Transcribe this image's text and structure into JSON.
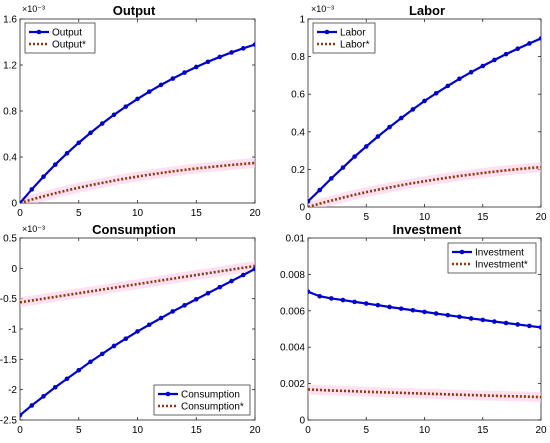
{
  "chart_data": [
    {
      "type": "line",
      "title": "Output",
      "exponent_label": "×10⁻³",
      "xlim": [
        0,
        20
      ],
      "ylim": [
        0,
        0.0016
      ],
      "xticks": [
        0,
        5,
        10,
        15,
        20
      ],
      "xtick_labels": [
        "0",
        "5",
        "10",
        "15",
        "20"
      ],
      "yticks": [
        0,
        0.0004,
        0.0008,
        0.0012,
        0.0016
      ],
      "ytick_labels": [
        "0",
        "0.4",
        "0.8",
        "1.2",
        "1.6"
      ],
      "legend_position": "top-left",
      "colors": {
        "primary": "#0000cc",
        "star": "#8b3a0f",
        "band": "#ffc8e6"
      },
      "x": [
        0,
        1,
        2,
        3,
        4,
        5,
        6,
        7,
        8,
        9,
        10,
        11,
        12,
        13,
        14,
        15,
        16,
        17,
        18,
        19,
        20
      ],
      "series": [
        {
          "name": "Output",
          "style": "solid-marker",
          "values": [
            0.0,
            0.000118,
            0.000229,
            0.000334,
            0.000432,
            0.000524,
            0.00061,
            0.000691,
            0.000767,
            0.000838,
            0.000905,
            0.000968,
            0.001027,
            0.001082,
            0.001134,
            0.001183,
            0.001228,
            0.00127,
            0.001309,
            0.001345,
            0.001378
          ]
        },
        {
          "name": "Output*",
          "style": "dotted",
          "values": [
            0.0,
            3e-05,
            5.8e-05,
            8.5e-05,
            0.00011,
            0.000133,
            0.000155,
            0.000175,
            0.000195,
            0.000213,
            0.00023,
            0.000246,
            0.000261,
            0.000275,
            0.000288,
            0.0003,
            0.000311,
            0.000321,
            0.000331,
            0.00034,
            0.000348
          ]
        }
      ]
    },
    {
      "type": "line",
      "title": "Labor",
      "exponent_label": "×10⁻³",
      "xlim": [
        0,
        20
      ],
      "ylim": [
        0,
        0.001
      ],
      "xticks": [
        0,
        5,
        10,
        15,
        20
      ],
      "xtick_labels": [
        "0",
        "5",
        "10",
        "15",
        "20"
      ],
      "yticks": [
        0,
        0.0002,
        0.0004,
        0.0006,
        0.0008,
        0.001
      ],
      "ytick_labels": [
        "0",
        "0.2",
        "0.4",
        "0.6",
        "0.8",
        "1"
      ],
      "legend_position": "top-left",
      "colors": {
        "primary": "#0000cc",
        "star": "#8b3a0f",
        "band": "#ffc8e6"
      },
      "x": [
        0,
        1,
        2,
        3,
        4,
        5,
        6,
        7,
        8,
        9,
        10,
        11,
        12,
        13,
        14,
        15,
        16,
        17,
        18,
        19,
        20
      ],
      "series": [
        {
          "name": "Labor",
          "style": "solid-marker",
          "values": [
            3e-05,
            9e-05,
            0.000152,
            0.00021,
            0.000268,
            0.000322,
            0.000375,
            0.000425,
            0.000473,
            0.000519,
            0.000564,
            0.000605,
            0.000644,
            0.000682,
            0.000717,
            0.00075,
            0.000782,
            0.000813,
            0.000842,
            0.00087,
            0.000897
          ]
        },
        {
          "name": "Labor*",
          "style": "dotted",
          "values": [
            0.0,
            1.8e-05,
            3.4e-05,
            5e-05,
            6.5e-05,
            7.9e-05,
            9.2e-05,
            0.000104,
            0.000116,
            0.000127,
            0.000137,
            0.000147,
            0.000156,
            0.000165,
            0.000173,
            0.000181,
            0.000188,
            0.000195,
            0.000201,
            0.000207,
            0.000212
          ]
        }
      ]
    },
    {
      "type": "line",
      "title": "Consumption",
      "exponent_label": "×10⁻³",
      "xlim": [
        0,
        20
      ],
      "ylim": [
        -0.0025,
        0.0005
      ],
      "xticks": [
        0,
        5,
        10,
        15,
        20
      ],
      "xtick_labels": [
        "0",
        "5",
        "10",
        "15",
        "20"
      ],
      "yticks": [
        -0.0025,
        -0.002,
        -0.0015,
        -0.001,
        -0.0005,
        0,
        0.0005
      ],
      "ytick_labels": [
        "-2.5",
        "-2",
        "-1.5",
        "-1",
        "-0.5",
        "0",
        "0.5"
      ],
      "legend_position": "bottom-right",
      "colors": {
        "primary": "#0000cc",
        "star": "#8b3a0f",
        "band": "#ffc8e6"
      },
      "x": [
        0,
        1,
        2,
        3,
        4,
        5,
        6,
        7,
        8,
        9,
        10,
        11,
        12,
        13,
        14,
        15,
        16,
        17,
        18,
        19,
        20
      ],
      "series": [
        {
          "name": "Consumption",
          "style": "solid-marker",
          "values": [
            -0.00242,
            -0.00226,
            -0.00211,
            -0.00196,
            -0.00182,
            -0.00168,
            -0.00154,
            -0.00141,
            -0.00128,
            -0.00116,
            -0.00104,
            -0.00093,
            -0.00082,
            -0.00071,
            -0.00061,
            -0.00051,
            -0.00041,
            -0.00031,
            -0.00021,
            -0.00011,
            -1e-05
          ]
        },
        {
          "name": "Consumption*",
          "style": "dotted",
          "values": [
            -0.00056,
            -0.00053,
            -0.0005,
            -0.00047,
            -0.00044,
            -0.00041,
            -0.00038,
            -0.00035,
            -0.00032,
            -0.00029,
            -0.00026,
            -0.00023,
            -0.0002,
            -0.00017,
            -0.00014,
            -0.00011,
            -8e-05,
            -5e-05,
            -2e-05,
            1e-05,
            4e-05
          ]
        }
      ]
    },
    {
      "type": "line",
      "title": "Investment",
      "exponent_label": "",
      "xlim": [
        0,
        20
      ],
      "ylim": [
        0,
        0.01
      ],
      "xticks": [
        0,
        5,
        10,
        15,
        20
      ],
      "xtick_labels": [
        "0",
        "5",
        "10",
        "15",
        "20"
      ],
      "yticks": [
        0,
        0.002,
        0.004,
        0.006,
        0.008,
        0.01
      ],
      "ytick_labels": [
        "0",
        "0.002",
        "0.004",
        "0.006",
        "0.008",
        "0.01"
      ],
      "legend_position": "top-right",
      "colors": {
        "primary": "#0000cc",
        "star": "#8b3a0f",
        "band": "#ffc8e6"
      },
      "x": [
        0,
        1,
        2,
        3,
        4,
        5,
        6,
        7,
        8,
        9,
        10,
        11,
        12,
        13,
        14,
        15,
        16,
        17,
        18,
        19,
        20
      ],
      "series": [
        {
          "name": "Investment",
          "style": "solid-marker",
          "values": [
            0.00705,
            0.0068,
            0.00668,
            0.00659,
            0.00649,
            0.0064,
            0.00631,
            0.00621,
            0.00612,
            0.00603,
            0.00594,
            0.00585,
            0.00576,
            0.00567,
            0.00558,
            0.0055,
            0.00541,
            0.00533,
            0.00525,
            0.00517,
            0.00509
          ]
        },
        {
          "name": "Investment*",
          "style": "dotted",
          "values": [
            0.00168,
            0.00165,
            0.00162,
            0.0016,
            0.00158,
            0.00155,
            0.00153,
            0.00151,
            0.00149,
            0.00147,
            0.00145,
            0.00143,
            0.00141,
            0.00139,
            0.00137,
            0.00135,
            0.00133,
            0.00131,
            0.0013,
            0.00128,
            0.00126
          ]
        }
      ]
    }
  ]
}
